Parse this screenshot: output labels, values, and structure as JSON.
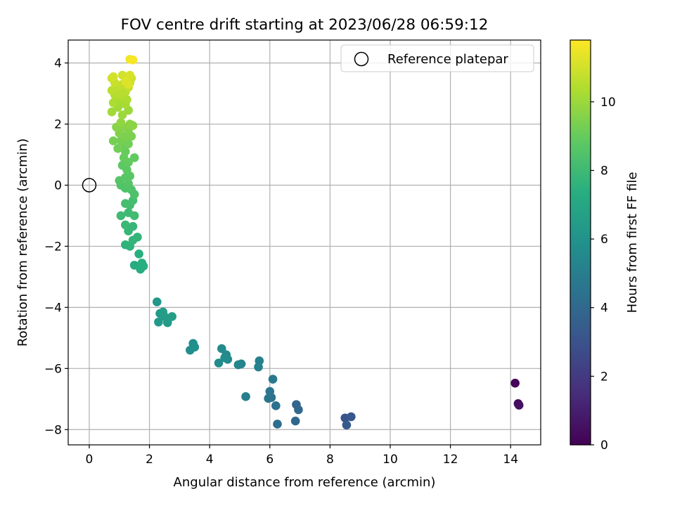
{
  "chart_data": {
    "type": "scatter",
    "title": "FOV centre drift starting at 2023/06/28 06:59:12",
    "xlabel": "Angular distance from reference (arcmin)",
    "ylabel": "Rotation from reference (arcmin)",
    "xlim": [
      -0.7,
      15.0
    ],
    "ylim": [
      -8.5,
      4.75
    ],
    "xticks": [
      0,
      2,
      4,
      6,
      8,
      10,
      12,
      14
    ],
    "yticks": [
      -8,
      -6,
      -4,
      -2,
      0,
      2,
      4
    ],
    "grid": true,
    "legend": {
      "placement": "top-right",
      "entries": [
        "Reference platepar"
      ]
    },
    "reference_point": {
      "x": 0,
      "y": 0,
      "label": "Reference platepar"
    },
    "colorbar": {
      "label": "Hours from first FF file",
      "colormap": "viridis",
      "range": [
        0,
        11.8
      ],
      "ticks": [
        0,
        2,
        4,
        6,
        8,
        10
      ]
    },
    "points": [
      {
        "x": 14.15,
        "y": -6.48,
        "c": 0.1
      },
      {
        "x": 14.25,
        "y": -7.15,
        "c": 0.3
      },
      {
        "x": 14.28,
        "y": -7.2,
        "c": 0.5
      },
      {
        "x": 8.5,
        "y": -7.62,
        "c": 3.0
      },
      {
        "x": 8.7,
        "y": -7.58,
        "c": 3.2
      },
      {
        "x": 8.55,
        "y": -7.85,
        "c": 3.3
      },
      {
        "x": 6.88,
        "y": -7.18,
        "c": 3.8
      },
      {
        "x": 6.95,
        "y": -7.35,
        "c": 3.9
      },
      {
        "x": 6.85,
        "y": -7.72,
        "c": 3.9
      },
      {
        "x": 6.25,
        "y": -7.82,
        "c": 4.2
      },
      {
        "x": 6.2,
        "y": -7.22,
        "c": 4.3
      },
      {
        "x": 6.05,
        "y": -6.95,
        "c": 4.4
      },
      {
        "x": 5.95,
        "y": -6.98,
        "c": 4.5
      },
      {
        "x": 6.0,
        "y": -6.75,
        "c": 4.6
      },
      {
        "x": 6.1,
        "y": -6.35,
        "c": 4.7
      },
      {
        "x": 5.2,
        "y": -6.92,
        "c": 5.0
      },
      {
        "x": 5.65,
        "y": -5.75,
        "c": 5.1
      },
      {
        "x": 5.62,
        "y": -5.95,
        "c": 5.2
      },
      {
        "x": 5.05,
        "y": -5.85,
        "c": 5.3
      },
      {
        "x": 4.95,
        "y": -5.88,
        "c": 5.4
      },
      {
        "x": 4.55,
        "y": -5.55,
        "c": 5.5
      },
      {
        "x": 4.6,
        "y": -5.7,
        "c": 5.5
      },
      {
        "x": 4.4,
        "y": -5.35,
        "c": 5.6
      },
      {
        "x": 4.3,
        "y": -5.82,
        "c": 5.6
      },
      {
        "x": 4.5,
        "y": -5.65,
        "c": 5.7
      },
      {
        "x": 3.45,
        "y": -5.18,
        "c": 5.8
      },
      {
        "x": 3.35,
        "y": -5.4,
        "c": 5.8
      },
      {
        "x": 3.5,
        "y": -5.3,
        "c": 5.9
      },
      {
        "x": 2.25,
        "y": -3.82,
        "c": 6.2
      },
      {
        "x": 2.35,
        "y": -4.2,
        "c": 6.3
      },
      {
        "x": 2.3,
        "y": -4.48,
        "c": 6.3
      },
      {
        "x": 2.5,
        "y": -4.3,
        "c": 6.4
      },
      {
        "x": 2.6,
        "y": -4.5,
        "c": 6.4
      },
      {
        "x": 2.75,
        "y": -4.3,
        "c": 6.5
      },
      {
        "x": 2.45,
        "y": -4.15,
        "c": 6.5
      },
      {
        "x": 1.5,
        "y": -2.62,
        "c": 7.2
      },
      {
        "x": 1.7,
        "y": -2.75,
        "c": 7.3
      },
      {
        "x": 1.8,
        "y": -2.65,
        "c": 7.3
      },
      {
        "x": 1.65,
        "y": -2.25,
        "c": 7.4
      },
      {
        "x": 1.75,
        "y": -2.55,
        "c": 7.4
      },
      {
        "x": 1.2,
        "y": -1.95,
        "c": 7.6
      },
      {
        "x": 1.35,
        "y": -2.0,
        "c": 7.6
      },
      {
        "x": 1.45,
        "y": -1.8,
        "c": 7.7
      },
      {
        "x": 1.6,
        "y": -1.7,
        "c": 7.7
      },
      {
        "x": 1.3,
        "y": -1.5,
        "c": 7.8
      },
      {
        "x": 1.45,
        "y": -1.35,
        "c": 7.8
      },
      {
        "x": 1.2,
        "y": -1.3,
        "c": 7.9
      },
      {
        "x": 1.05,
        "y": -1.0,
        "c": 8.0
      },
      {
        "x": 1.3,
        "y": -0.9,
        "c": 8.0
      },
      {
        "x": 1.5,
        "y": -1.0,
        "c": 8.1
      },
      {
        "x": 1.35,
        "y": -0.65,
        "c": 8.1
      },
      {
        "x": 1.2,
        "y": -0.6,
        "c": 8.2
      },
      {
        "x": 1.45,
        "y": -0.5,
        "c": 8.2
      },
      {
        "x": 1.5,
        "y": -0.3,
        "c": 8.4
      },
      {
        "x": 1.4,
        "y": -0.15,
        "c": 8.4
      },
      {
        "x": 1.2,
        "y": -0.1,
        "c": 8.5
      },
      {
        "x": 1.05,
        "y": 0.0,
        "c": 8.5
      },
      {
        "x": 1.3,
        "y": 0.05,
        "c": 8.6
      },
      {
        "x": 1.0,
        "y": 0.15,
        "c": 8.6
      },
      {
        "x": 1.2,
        "y": 0.25,
        "c": 8.7
      },
      {
        "x": 1.35,
        "y": 0.3,
        "c": 8.7
      },
      {
        "x": 1.25,
        "y": 0.5,
        "c": 8.8
      },
      {
        "x": 1.1,
        "y": 0.65,
        "c": 8.8
      },
      {
        "x": 1.3,
        "y": 0.75,
        "c": 8.9
      },
      {
        "x": 1.5,
        "y": 0.9,
        "c": 8.9
      },
      {
        "x": 1.15,
        "y": 0.9,
        "c": 9.0
      },
      {
        "x": 1.2,
        "y": 1.1,
        "c": 9.0
      },
      {
        "x": 1.1,
        "y": 1.25,
        "c": 9.1
      },
      {
        "x": 0.95,
        "y": 1.2,
        "c": 9.2
      },
      {
        "x": 1.3,
        "y": 1.35,
        "c": 9.2
      },
      {
        "x": 1.05,
        "y": 1.45,
        "c": 9.3
      },
      {
        "x": 0.8,
        "y": 1.45,
        "c": 9.3
      },
      {
        "x": 1.2,
        "y": 1.6,
        "c": 9.4
      },
      {
        "x": 1.4,
        "y": 1.6,
        "c": 9.4
      },
      {
        "x": 1.0,
        "y": 1.7,
        "c": 9.5
      },
      {
        "x": 1.3,
        "y": 1.8,
        "c": 9.5
      },
      {
        "x": 1.15,
        "y": 1.9,
        "c": 9.6
      },
      {
        "x": 0.9,
        "y": 1.9,
        "c": 9.6
      },
      {
        "x": 1.35,
        "y": 2.0,
        "c": 9.7
      },
      {
        "x": 1.45,
        "y": 1.95,
        "c": 9.7
      },
      {
        "x": 1.05,
        "y": 2.05,
        "c": 9.8
      },
      {
        "x": 1.3,
        "y": 2.45,
        "c": 10.0
      },
      {
        "x": 1.1,
        "y": 2.3,
        "c": 10.0
      },
      {
        "x": 0.75,
        "y": 2.4,
        "c": 10.1
      },
      {
        "x": 0.95,
        "y": 2.55,
        "c": 10.1
      },
      {
        "x": 1.2,
        "y": 2.65,
        "c": 10.2
      },
      {
        "x": 1.0,
        "y": 2.75,
        "c": 10.2
      },
      {
        "x": 0.8,
        "y": 2.7,
        "c": 10.3
      },
      {
        "x": 1.25,
        "y": 2.8,
        "c": 10.3
      },
      {
        "x": 1.1,
        "y": 2.9,
        "c": 10.4
      },
      {
        "x": 0.85,
        "y": 2.95,
        "c": 10.4
      },
      {
        "x": 1.0,
        "y": 3.0,
        "c": 10.5
      },
      {
        "x": 1.2,
        "y": 3.05,
        "c": 10.5
      },
      {
        "x": 0.75,
        "y": 3.1,
        "c": 10.6
      },
      {
        "x": 0.95,
        "y": 3.2,
        "c": 10.6
      },
      {
        "x": 1.3,
        "y": 3.2,
        "c": 10.7
      },
      {
        "x": 1.1,
        "y": 3.3,
        "c": 10.7
      },
      {
        "x": 0.85,
        "y": 3.35,
        "c": 10.8
      },
      {
        "x": 1.35,
        "y": 3.35,
        "c": 10.8
      },
      {
        "x": 1.4,
        "y": 3.5,
        "c": 10.9
      },
      {
        "x": 0.75,
        "y": 3.5,
        "c": 10.9
      },
      {
        "x": 0.8,
        "y": 3.55,
        "c": 11.0
      },
      {
        "x": 1.1,
        "y": 3.6,
        "c": 11.0
      },
      {
        "x": 1.35,
        "y": 3.6,
        "c": 11.1
      },
      {
        "x": 1.25,
        "y": 3.45,
        "c": 11.1
      },
      {
        "x": 1.3,
        "y": 3.3,
        "c": 11.2
      },
      {
        "x": 1.2,
        "y": 3.4,
        "c": 11.2
      },
      {
        "x": 1.35,
        "y": 4.12,
        "c": 11.6
      },
      {
        "x": 1.45,
        "y": 4.1,
        "c": 11.7
      }
    ]
  }
}
